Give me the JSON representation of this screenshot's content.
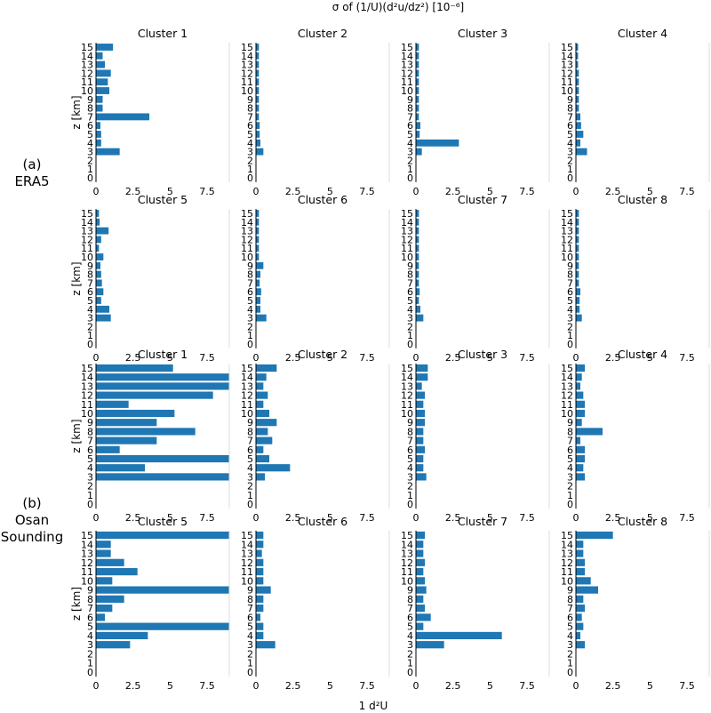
{
  "figure_title": "σ of (1/U)(d²u/dz²) [10⁻⁶]",
  "bottom_label": "1 d²U",
  "row_labels": [
    {
      "letter": "(a)",
      "name": "ERA5"
    },
    {
      "letter": "(b)",
      "name": "Osan",
      "name2": "Sounding"
    }
  ],
  "ylabel": "z [km]",
  "bar_color": "#1f77b4",
  "chart_data": [
    {
      "type": "bar",
      "orientation": "horizontal",
      "group": "ERA5",
      "title": "Cluster 1",
      "ylabel": "z [km]",
      "categories": [
        0,
        1,
        2,
        3,
        4,
        5,
        6,
        7,
        8,
        9,
        10,
        11,
        12,
        13,
        14,
        15
      ],
      "xlim": [
        0,
        9
      ],
      "xticks": [
        0,
        2.5,
        5,
        7.5
      ],
      "values": [
        0,
        0,
        0,
        1.6,
        0.35,
        0.35,
        0.3,
        3.6,
        0.45,
        0.45,
        0.9,
        0.8,
        1.0,
        0.6,
        0.45,
        1.15
      ]
    },
    {
      "type": "bar",
      "orientation": "horizontal",
      "group": "ERA5",
      "title": "Cluster 2",
      "ylabel": "z [km]",
      "categories": [
        0,
        1,
        2,
        3,
        4,
        5,
        6,
        7,
        8,
        9,
        10,
        11,
        12,
        13,
        14,
        15
      ],
      "xlim": [
        0,
        9
      ],
      "xticks": [
        0,
        2.5,
        5,
        7.5
      ],
      "values": [
        0,
        0,
        0,
        0.5,
        0.3,
        0.25,
        0.25,
        0.2,
        0.2,
        0.2,
        0.2,
        0.2,
        0.2,
        0.2,
        0.2,
        0.2
      ]
    },
    {
      "type": "bar",
      "orientation": "horizontal",
      "group": "ERA5",
      "title": "Cluster 3",
      "ylabel": "z [km]",
      "categories": [
        0,
        1,
        2,
        3,
        4,
        5,
        6,
        7,
        8,
        9,
        10,
        11,
        12,
        13,
        14,
        15
      ],
      "xlim": [
        0,
        9
      ],
      "xticks": [
        0,
        2.5,
        5,
        7.5
      ],
      "values": [
        0,
        0,
        0,
        0.4,
        2.9,
        0.25,
        0.3,
        0.2,
        0.2,
        0.2,
        0.2,
        0.2,
        0.2,
        0.2,
        0.2,
        0.2
      ]
    },
    {
      "type": "bar",
      "orientation": "horizontal",
      "group": "ERA5",
      "title": "Cluster 4",
      "ylabel": "z [km]",
      "categories": [
        0,
        1,
        2,
        3,
        4,
        5,
        6,
        7,
        8,
        9,
        10,
        11,
        12,
        13,
        14,
        15
      ],
      "xlim": [
        0,
        9
      ],
      "xticks": [
        0,
        2.5,
        5,
        7.5
      ],
      "values": [
        0,
        0,
        0,
        0.75,
        0.3,
        0.5,
        0.35,
        0.3,
        0.2,
        0.2,
        0.2,
        0.2,
        0.2,
        0.15,
        0.15,
        0.15
      ]
    },
    {
      "type": "bar",
      "orientation": "horizontal",
      "group": "ERA5",
      "title": "Cluster 5",
      "ylabel": "z [km]",
      "categories": [
        0,
        1,
        2,
        3,
        4,
        5,
        6,
        7,
        8,
        9,
        10,
        11,
        12,
        13,
        14,
        15
      ],
      "xlim": [
        0,
        9
      ],
      "xticks": [
        0,
        2.5,
        5,
        7.5
      ],
      "values": [
        0,
        0,
        0,
        1.0,
        0.9,
        0.35,
        0.5,
        0.4,
        0.35,
        0.3,
        0.5,
        0.2,
        0.35,
        0.85,
        0.25,
        0.2
      ]
    },
    {
      "type": "bar",
      "orientation": "horizontal",
      "group": "ERA5",
      "title": "Cluster 6",
      "ylabel": "z [km]",
      "categories": [
        0,
        1,
        2,
        3,
        4,
        5,
        6,
        7,
        8,
        9,
        10,
        11,
        12,
        13,
        14,
        15
      ],
      "xlim": [
        0,
        9
      ],
      "xticks": [
        0,
        2.5,
        5,
        7.5
      ],
      "values": [
        0,
        0,
        0,
        0.7,
        0.3,
        0.3,
        0.35,
        0.25,
        0.3,
        0.5,
        0.2,
        0.2,
        0.2,
        0.2,
        0.2,
        0.2
      ]
    },
    {
      "type": "bar",
      "orientation": "horizontal",
      "group": "ERA5",
      "title": "Cluster 7",
      "ylabel": "z [km]",
      "categories": [
        0,
        1,
        2,
        3,
        4,
        5,
        6,
        7,
        8,
        9,
        10,
        11,
        12,
        13,
        14,
        15
      ],
      "xlim": [
        0,
        9
      ],
      "xticks": [
        0,
        2.5,
        5,
        7.5
      ],
      "values": [
        0,
        0,
        0,
        0.5,
        0.3,
        0.2,
        0.25,
        0.2,
        0.2,
        0.2,
        0.2,
        0.2,
        0.2,
        0.2,
        0.2,
        0.2
      ]
    },
    {
      "type": "bar",
      "orientation": "horizontal",
      "group": "ERA5",
      "title": "Cluster 8",
      "ylabel": "z [km]",
      "categories": [
        0,
        1,
        2,
        3,
        4,
        5,
        6,
        7,
        8,
        9,
        10,
        11,
        12,
        13,
        14,
        15
      ],
      "xlim": [
        0,
        9
      ],
      "xticks": [
        0,
        2.5,
        5,
        7.5
      ],
      "values": [
        0,
        0,
        0,
        0.4,
        0.25,
        0.25,
        0.3,
        0.2,
        0.2,
        0.2,
        0.2,
        0.2,
        0.2,
        0.2,
        0.2,
        0.2
      ]
    },
    {
      "type": "bar",
      "orientation": "horizontal",
      "group": "Osan Sounding",
      "title": "Cluster 1",
      "ylabel": "z [km]",
      "categories": [
        0,
        1,
        2,
        3,
        4,
        5,
        6,
        7,
        8,
        9,
        10,
        11,
        12,
        13,
        14,
        15
      ],
      "xlim": [
        0,
        9
      ],
      "xticks": [
        0,
        2.5,
        5,
        7.5
      ],
      "values": [
        0,
        0,
        0,
        9.0,
        3.3,
        9.0,
        1.6,
        4.1,
        6.7,
        4.1,
        5.3,
        2.2,
        7.9,
        9.0,
        9.0,
        5.2
      ]
    },
    {
      "type": "bar",
      "orientation": "horizontal",
      "group": "Osan Sounding",
      "title": "Cluster 2",
      "ylabel": "z [km]",
      "categories": [
        0,
        1,
        2,
        3,
        4,
        5,
        6,
        7,
        8,
        9,
        10,
        11,
        12,
        13,
        14,
        15
      ],
      "xlim": [
        0,
        9
      ],
      "xticks": [
        0,
        2.5,
        5,
        7.5
      ],
      "values": [
        0,
        0,
        0,
        0.6,
        2.3,
        0.9,
        0.5,
        1.1,
        0.8,
        1.4,
        0.9,
        0.5,
        0.8,
        0.5,
        0.7,
        1.4
      ]
    },
    {
      "type": "bar",
      "orientation": "horizontal",
      "group": "Osan Sounding",
      "title": "Cluster 3",
      "ylabel": "z [km]",
      "categories": [
        0,
        1,
        2,
        3,
        4,
        5,
        6,
        7,
        8,
        9,
        10,
        11,
        12,
        13,
        14,
        15
      ],
      "xlim": [
        0,
        9
      ],
      "xticks": [
        0,
        2.5,
        5,
        7.5
      ],
      "values": [
        0,
        0,
        0,
        0.7,
        0.5,
        0.5,
        0.6,
        0.5,
        0.5,
        0.6,
        0.6,
        0.5,
        0.6,
        0.4,
        0.8,
        0.8
      ]
    },
    {
      "type": "bar",
      "orientation": "horizontal",
      "group": "Osan Sounding",
      "title": "Cluster 4",
      "ylabel": "z [km]",
      "categories": [
        0,
        1,
        2,
        3,
        4,
        5,
        6,
        7,
        8,
        9,
        10,
        11,
        12,
        13,
        14,
        15
      ],
      "xlim": [
        0,
        9
      ],
      "xticks": [
        0,
        2.5,
        5,
        7.5
      ],
      "values": [
        0,
        0,
        0,
        0.6,
        0.5,
        0.6,
        0.6,
        0.3,
        1.8,
        0.4,
        0.6,
        0.6,
        0.5,
        0.3,
        0.4,
        0.6
      ]
    },
    {
      "type": "bar",
      "orientation": "horizontal",
      "group": "Osan Sounding",
      "title": "Cluster 5",
      "ylabel": "z [km]",
      "categories": [
        0,
        1,
        2,
        3,
        4,
        5,
        6,
        7,
        8,
        9,
        10,
        11,
        12,
        13,
        14,
        15
      ],
      "xlim": [
        0,
        9
      ],
      "xticks": [
        0,
        2.5,
        5,
        7.5
      ],
      "values": [
        0,
        0,
        0,
        2.3,
        3.5,
        9.0,
        0.6,
        1.1,
        1.9,
        9.0,
        1.1,
        2.8,
        1.9,
        1.0,
        1.0,
        9.0
      ]
    },
    {
      "type": "bar",
      "orientation": "horizontal",
      "group": "Osan Sounding",
      "title": "Cluster 6",
      "ylabel": "z [km]",
      "categories": [
        0,
        1,
        2,
        3,
        4,
        5,
        6,
        7,
        8,
        9,
        10,
        11,
        12,
        13,
        14,
        15
      ],
      "xlim": [
        0,
        9
      ],
      "xticks": [
        0,
        2.5,
        5,
        7.5
      ],
      "values": [
        0,
        0,
        0,
        1.3,
        0.5,
        0.5,
        0.3,
        0.5,
        0.5,
        1.0,
        0.5,
        0.5,
        0.5,
        0.4,
        0.5,
        0.5
      ]
    },
    {
      "type": "bar",
      "orientation": "horizontal",
      "group": "Osan Sounding",
      "title": "Cluster 7",
      "ylabel": "z [km]",
      "categories": [
        0,
        1,
        2,
        3,
        4,
        5,
        6,
        7,
        8,
        9,
        10,
        11,
        12,
        13,
        14,
        15
      ],
      "xlim": [
        0,
        9
      ],
      "xticks": [
        0,
        2.5,
        5,
        7.5
      ],
      "values": [
        0,
        0,
        0,
        1.9,
        5.8,
        0.5,
        1.0,
        0.6,
        0.5,
        0.7,
        0.6,
        0.5,
        0.6,
        0.5,
        0.5,
        0.6
      ]
    },
    {
      "type": "bar",
      "orientation": "horizontal",
      "group": "Osan Sounding",
      "title": "Cluster 8",
      "ylabel": "z [km]",
      "categories": [
        0,
        1,
        2,
        3,
        4,
        5,
        6,
        7,
        8,
        9,
        10,
        11,
        12,
        13,
        14,
        15
      ],
      "xlim": [
        0,
        9
      ],
      "xticks": [
        0,
        2.5,
        5,
        7.5
      ],
      "values": [
        0,
        0,
        0,
        0.6,
        0.3,
        0.5,
        0.4,
        0.6,
        0.5,
        1.5,
        1.0,
        0.6,
        0.6,
        0.5,
        0.5,
        2.5
      ]
    }
  ]
}
